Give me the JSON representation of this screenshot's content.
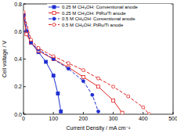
{
  "chart_data": {
    "type": "line",
    "x_label": "Current Density / mA cm⁻²",
    "y_label": "Cell voltage / V",
    "xlim": [
      0,
      500
    ],
    "xticks": [
      0,
      100,
      200,
      300,
      400,
      500
    ],
    "ylim": [
      0,
      0.8
    ],
    "yticks": [
      {
        "value": 0,
        "label": "0.0"
      },
      0.2,
      0.4,
      0.6,
      0.8
    ],
    "legend": "top-right",
    "series": [
      {
        "name": "0.25 M CH₃OH: Conventional anode",
        "color": "#1f2fd0",
        "marker": "square",
        "line_style": "solid",
        "x": [
          0,
          10,
          25,
          50,
          75,
          100,
          115,
          125
        ],
        "values": [
          0.72,
          0.6,
          0.52,
          0.45,
          0.38,
          0.28,
          0.15,
          0.02
        ]
      },
      {
        "name": "0.25 M CH₃OH: PtRu/Ti anode",
        "color": "#e02020",
        "marker": "square-open",
        "line_style": "solid",
        "x": [
          0,
          10,
          25,
          50,
          100,
          150,
          200,
          250,
          300,
          330
        ],
        "values": [
          0.72,
          0.58,
          0.52,
          0.46,
          0.4,
          0.34,
          0.27,
          0.2,
          0.1,
          0.01
        ]
      },
      {
        "name": "0.5 M CH₃OH: Conventional anode",
        "color": "#1f2fd0",
        "marker": "circle",
        "line_style": "dashed",
        "x": [
          0,
          25,
          50,
          100,
          150,
          200,
          230,
          250
        ],
        "values": [
          0.72,
          0.52,
          0.47,
          0.4,
          0.33,
          0.24,
          0.14,
          0.02
        ]
      },
      {
        "name": "0.5 M CH₃OH: PtRu/Ti anode",
        "color": "#e02020",
        "marker": "circle-open",
        "line_style": "dashed",
        "x": [
          0,
          25,
          50,
          100,
          150,
          200,
          250,
          300,
          350,
          400,
          420
        ],
        "values": [
          0.74,
          0.54,
          0.48,
          0.42,
          0.37,
          0.32,
          0.26,
          0.2,
          0.13,
          0.05,
          0.0
        ]
      }
    ]
  }
}
